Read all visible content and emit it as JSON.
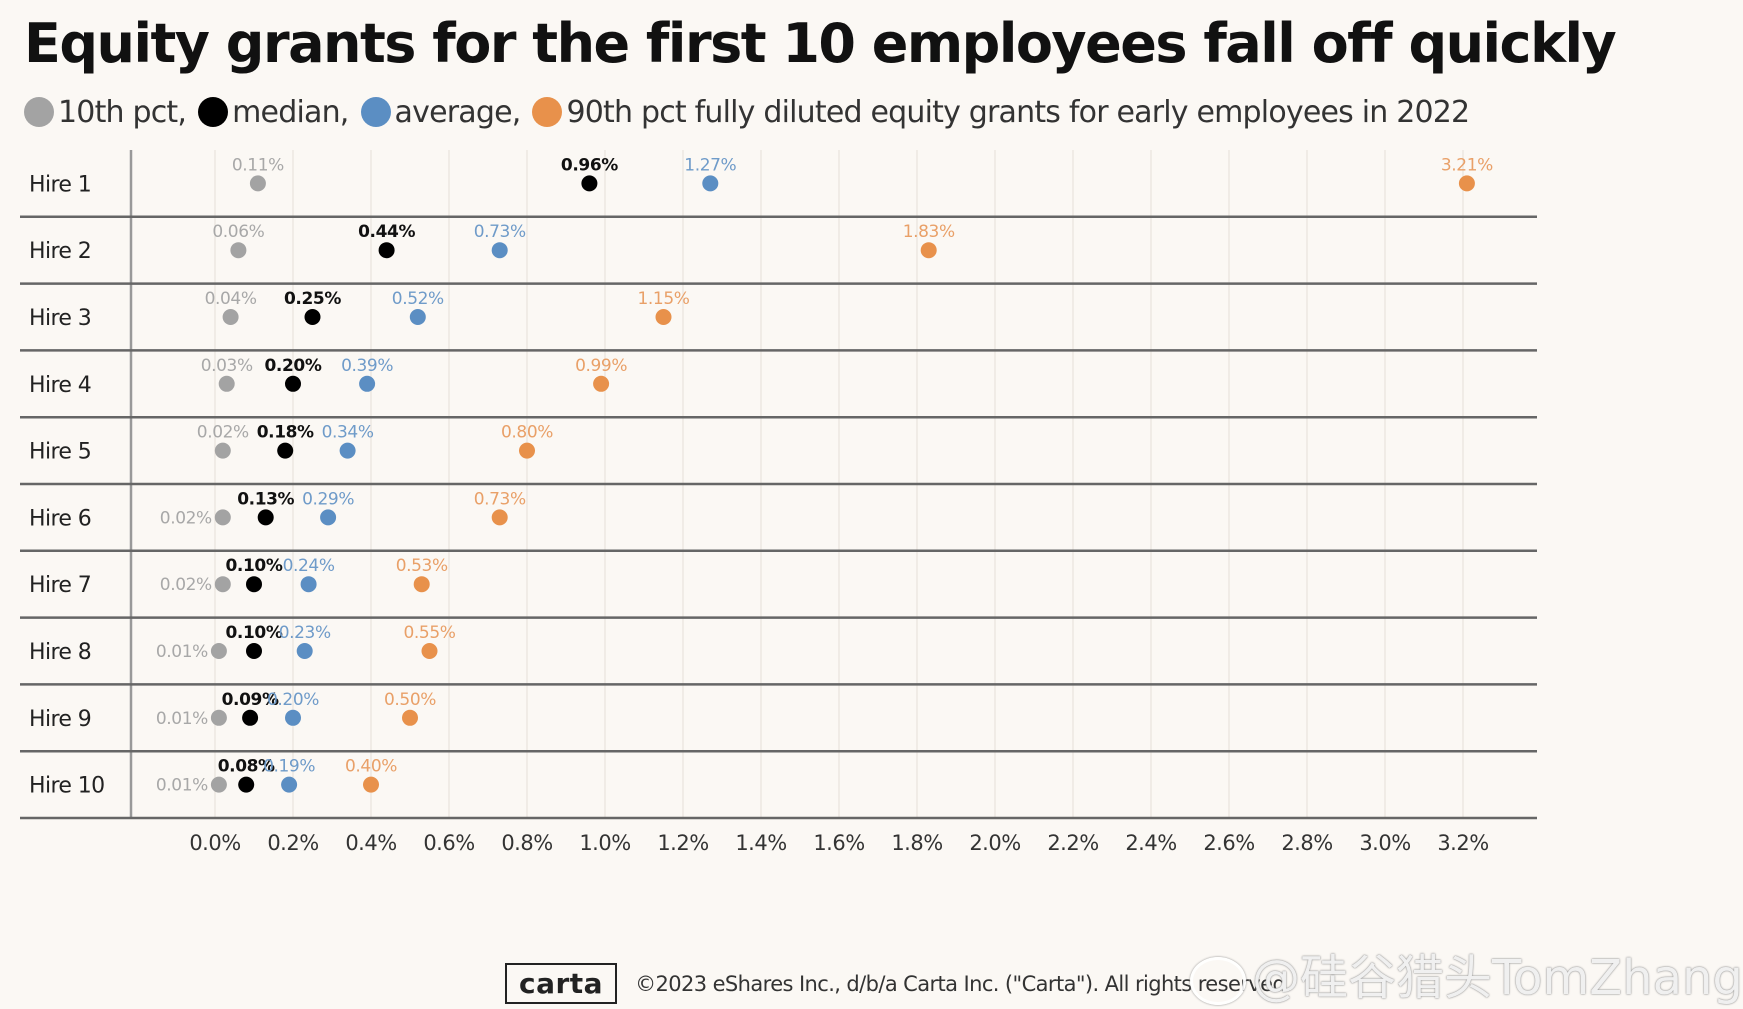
{
  "chart_data": {
    "type": "scatter",
    "title": "Equity grants for the first 10 employees fall off quickly",
    "subtitle": "90th pct fully diluted equity grants for early employees in 2022",
    "legend": [
      {
        "label": "10th pct,",
        "color": "#a3a3a3"
      },
      {
        "label": "median,",
        "color": "#000000"
      },
      {
        "label": "average,",
        "color": "#5b8ec3"
      },
      {
        "label": "90th pct fully diluted equity grants for early employees in 2022",
        "color": "#e8914b"
      }
    ],
    "legend_position": "top-left",
    "xlabel": "",
    "ylabel": "",
    "xlim": [
      0,
      3.2
    ],
    "x_ticks": [
      0.0,
      0.2,
      0.4,
      0.6,
      0.8,
      1.0,
      1.2,
      1.4,
      1.6,
      1.8,
      2.0,
      2.2,
      2.4,
      2.6,
      2.8,
      3.0,
      3.2
    ],
    "x_tick_labels": [
      "0.0%",
      "0.2%",
      "0.4%",
      "0.6%",
      "0.8%",
      "1.0%",
      "1.2%",
      "1.4%",
      "1.6%",
      "1.8%",
      "2.0%",
      "2.2%",
      "2.4%",
      "2.6%",
      "2.8%",
      "3.0%",
      "3.2%"
    ],
    "grid": true,
    "categories": [
      "Hire 1",
      "Hire 2",
      "Hire 3",
      "Hire 4",
      "Hire 5",
      "Hire 6",
      "Hire 7",
      "Hire 8",
      "Hire 9",
      "Hire 10"
    ],
    "series": [
      {
        "name": "10th pct",
        "color": "#a3a3a3",
        "label_color": "#a8a8a8",
        "bold": false,
        "values": [
          0.11,
          0.06,
          0.04,
          0.03,
          0.02,
          0.02,
          0.02,
          0.01,
          0.01,
          0.01
        ],
        "labels": [
          "0.11%",
          "0.06%",
          "0.04%",
          "0.03%",
          "0.02%",
          "0.02%",
          "0.02%",
          "0.01%",
          "0.01%",
          "0.01%"
        ]
      },
      {
        "name": "median",
        "color": "#000000",
        "label_color": "#111111",
        "bold": true,
        "values": [
          0.96,
          0.44,
          0.25,
          0.2,
          0.18,
          0.13,
          0.1,
          0.1,
          0.09,
          0.08
        ],
        "labels": [
          "0.96%",
          "0.44%",
          "0.25%",
          "0.20%",
          "0.18%",
          "0.13%",
          "0.10%",
          "0.10%",
          "0.09%",
          "0.08%"
        ]
      },
      {
        "name": "average",
        "color": "#5b8ec3",
        "label_color": "#6f9bc9",
        "bold": false,
        "values": [
          1.27,
          0.73,
          0.52,
          0.39,
          0.34,
          0.29,
          0.24,
          0.23,
          0.2,
          0.19
        ],
        "labels": [
          "1.27%",
          "0.73%",
          "0.52%",
          "0.39%",
          "0.34%",
          "0.29%",
          "0.24%",
          "0.23%",
          "0.20%",
          "0.19%"
        ]
      },
      {
        "name": "90th pct",
        "color": "#e8914b",
        "label_color": "#e9a068",
        "bold": false,
        "values": [
          3.21,
          1.83,
          1.15,
          0.99,
          0.8,
          0.73,
          0.53,
          0.55,
          0.5,
          0.4
        ],
        "labels": [
          "3.21%",
          "1.83%",
          "1.15%",
          "0.99%",
          "0.80%",
          "0.73%",
          "0.53%",
          "0.55%",
          "0.50%",
          "0.40%"
        ]
      }
    ]
  },
  "footer": {
    "logo": "carta",
    "copyright": "©2023 eShares Inc., d/b/a Carta Inc. (\"Carta\"). All rights reserved."
  },
  "watermark": "@硅谷猎头TomZhang"
}
